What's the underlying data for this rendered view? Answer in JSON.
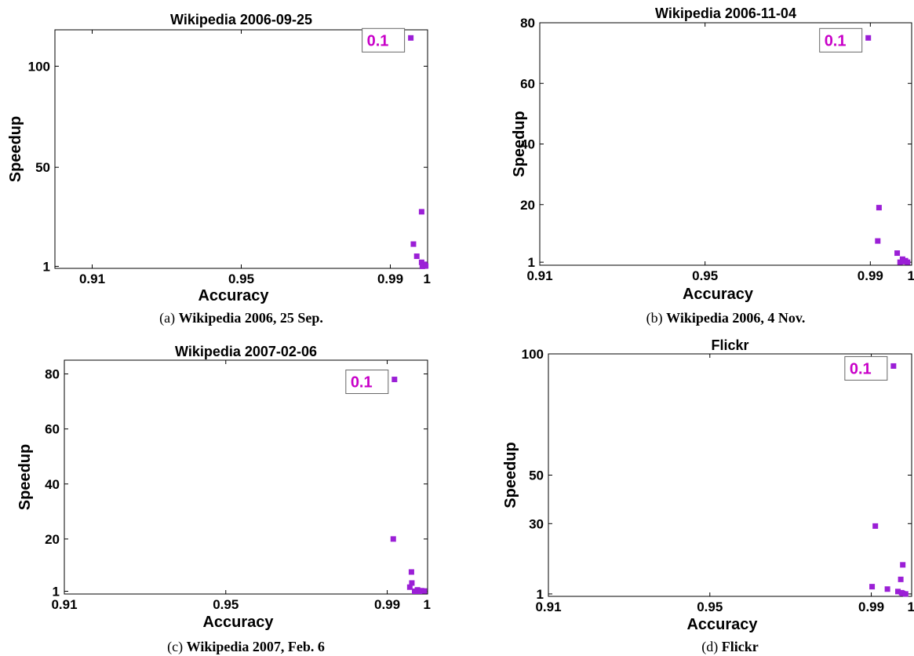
{
  "colors": {
    "marker": "#9b1fd6",
    "annotation": "#c800c8",
    "axis": "#000000"
  },
  "chart_data": [
    {
      "type": "scatter",
      "title": "Wikipedia 2006-09-25",
      "xlabel": "Accuracy",
      "ylabel": "Speedup",
      "xlim": [
        0.9,
        1.0
      ],
      "ylim": [
        0,
        118
      ],
      "xticks": [
        {
          "v": 0.91,
          "label": "0.91"
        },
        {
          "v": 0.95,
          "label": "0.95"
        },
        {
          "v": 0.99,
          "label": "0.99"
        },
        {
          "v": 1.0,
          "label": "1"
        }
      ],
      "yticks": [
        {
          "v": 1,
          "label": "1"
        },
        {
          "v": 50,
          "label": "50"
        },
        {
          "v": 100,
          "label": "100"
        }
      ],
      "caption_prefix": "(a) ",
      "caption_bold": "Wikipedia 2006, 25 Sep.",
      "annotation": {
        "text": "0.1",
        "point": [
          0.9955,
          114
        ]
      },
      "points": [
        [
          0.9955,
          114
        ],
        [
          0.9984,
          28
        ],
        [
          0.9962,
          12
        ],
        [
          0.9971,
          6
        ],
        [
          0.9984,
          3
        ],
        [
          0.9992,
          2
        ],
        [
          0.9986,
          1
        ],
        [
          0.9989,
          1.5
        ],
        [
          0.9995,
          1.2
        ]
      ]
    },
    {
      "type": "scatter",
      "title": "Wikipedia 2006-11-04",
      "xlabel": "Accuracy",
      "ylabel": "Speedup",
      "xlim": [
        0.91,
        1.0
      ],
      "ylim": [
        0,
        80
      ],
      "xticks": [
        {
          "v": 0.91,
          "label": "0.91"
        },
        {
          "v": 0.95,
          "label": "0.95"
        },
        {
          "v": 0.99,
          "label": "0.99"
        },
        {
          "v": 1.0,
          "label": "1"
        }
      ],
      "yticks": [
        {
          "v": 1,
          "label": "1"
        },
        {
          "v": 20,
          "label": "20"
        },
        {
          "v": 40,
          "label": "40"
        },
        {
          "v": 60,
          "label": "60"
        },
        {
          "v": 80,
          "label": "80"
        }
      ],
      "caption_prefix": "(b) ",
      "caption_bold": "Wikipedia 2006, 4 Nov.",
      "annotation": {
        "text": "0.1",
        "point": [
          0.9895,
          75
        ]
      },
      "points": [
        [
          0.9895,
          75
        ],
        [
          0.9921,
          19
        ],
        [
          0.9918,
          8
        ],
        [
          0.9965,
          4
        ],
        [
          0.9978,
          2
        ],
        [
          0.9985,
          1.5
        ],
        [
          0.9972,
          1
        ],
        [
          0.998,
          1.2
        ],
        [
          0.999,
          1
        ]
      ]
    },
    {
      "type": "scatter",
      "title": "Wikipedia 2007-02-06",
      "xlabel": "Accuracy",
      "ylabel": "Speedup",
      "xlim": [
        0.91,
        1.0
      ],
      "ylim": [
        0,
        85
      ],
      "xticks": [
        {
          "v": 0.91,
          "label": "0.91"
        },
        {
          "v": 0.95,
          "label": "0.95"
        },
        {
          "v": 0.99,
          "label": "0.99"
        },
        {
          "v": 1.0,
          "label": "1"
        }
      ],
      "yticks": [
        {
          "v": 1,
          "label": "1"
        },
        {
          "v": 20,
          "label": "20"
        },
        {
          "v": 40,
          "label": "40"
        },
        {
          "v": 60,
          "label": "60"
        },
        {
          "v": 80,
          "label": "80"
        }
      ],
      "caption_prefix": "(c) ",
      "caption_bold": "Wikipedia 2007, Feb. 6",
      "annotation": {
        "text": "0.1",
        "point": [
          0.9918,
          78
        ]
      },
      "points": [
        [
          0.9918,
          78
        ],
        [
          0.9915,
          20
        ],
        [
          0.996,
          8
        ],
        [
          0.9961,
          4
        ],
        [
          0.9956,
          2.5
        ],
        [
          0.9975,
          1.5
        ],
        [
          0.9985,
          1.2
        ],
        [
          0.998,
          1
        ],
        [
          0.9992,
          1.1
        ],
        [
          0.9968,
          1
        ]
      ]
    },
    {
      "type": "scatter",
      "title": "Flickr",
      "xlabel": "Accuracy",
      "ylabel": "Speedup",
      "xlim": [
        0.91,
        1.0
      ],
      "ylim": [
        0,
        100
      ],
      "xticks": [
        {
          "v": 0.91,
          "label": "0.91"
        },
        {
          "v": 0.95,
          "label": "0.95"
        },
        {
          "v": 0.99,
          "label": "0.99"
        },
        {
          "v": 1.0,
          "label": "1"
        }
      ],
      "yticks": [
        {
          "v": 1,
          "label": "1"
        },
        {
          "v": 30,
          "label": "30"
        },
        {
          "v": 50,
          "label": "50"
        },
        {
          "v": 100,
          "label": "100"
        }
      ],
      "caption_prefix": "(d) ",
      "caption_bold": "Flickr",
      "annotation": {
        "text": "0.1",
        "point": [
          0.9955,
          95
        ]
      },
      "points": [
        [
          0.9955,
          95
        ],
        [
          0.991,
          29
        ],
        [
          0.9902,
          4
        ],
        [
          0.9978,
          13
        ],
        [
          0.9973,
          7
        ],
        [
          0.994,
          3
        ],
        [
          0.9966,
          2
        ],
        [
          0.9975,
          1.5
        ],
        [
          0.9978,
          1.2
        ],
        [
          0.9985,
          1
        ]
      ]
    }
  ]
}
